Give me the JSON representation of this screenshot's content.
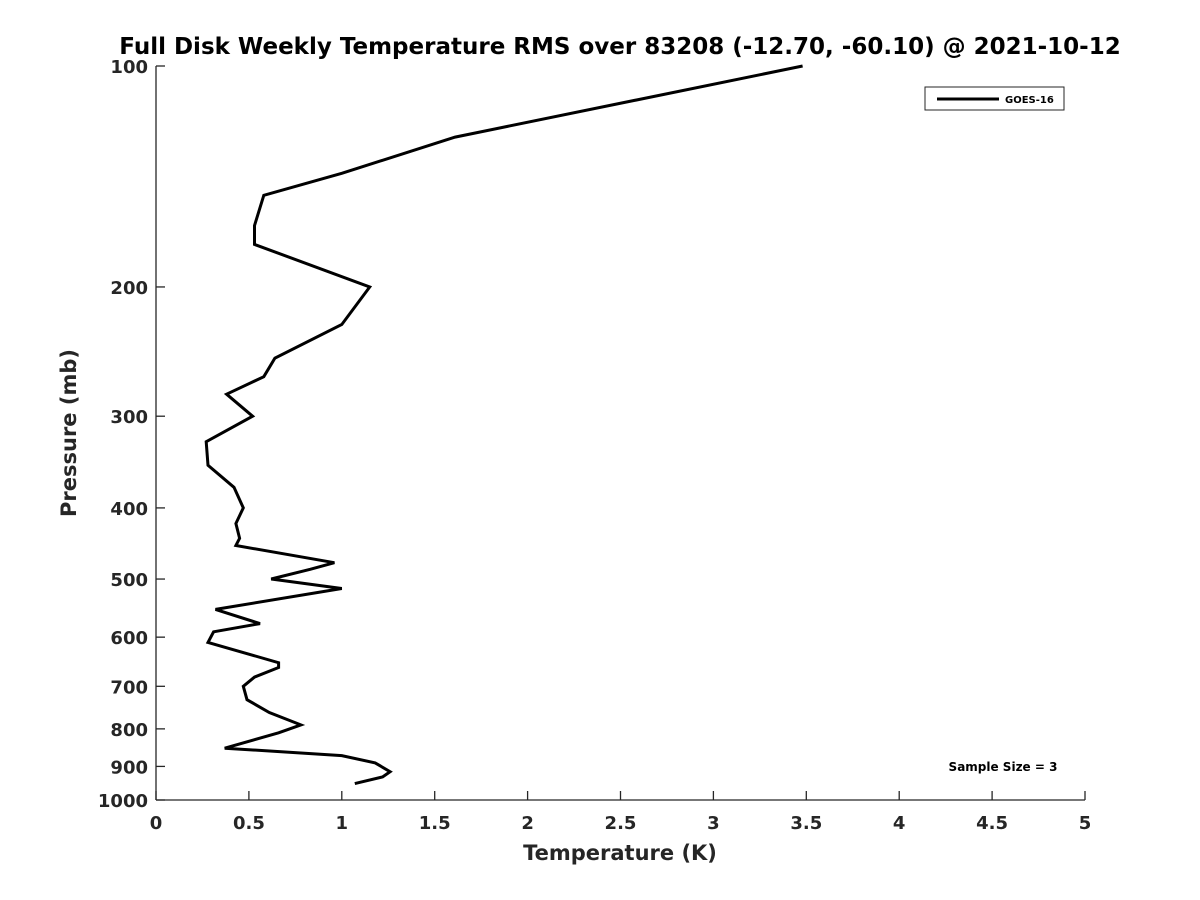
{
  "chart_data": {
    "type": "line",
    "title": "Full Disk Weekly Temperature RMS over 83208 (-12.70, -60.10) @ 2021-10-12",
    "xlabel": "Temperature (K)",
    "ylabel": "Pressure (mb)",
    "xlim": [
      0,
      5
    ],
    "ylim": [
      100,
      1000
    ],
    "y_scale": "log",
    "y_reversed": true,
    "x_ticks": [
      "0",
      "0.5",
      "1",
      "1.5",
      "2",
      "2.5",
      "3",
      "3.5",
      "4",
      "4.5",
      "5"
    ],
    "y_ticks": [
      "100",
      "200",
      "300",
      "400",
      "500",
      "600",
      "700",
      "800",
      "900",
      "1000"
    ],
    "grid": false,
    "legend": {
      "placement": "top-right",
      "entries": [
        "GOES-16"
      ]
    },
    "annotation": "Sample Size = 3",
    "series": [
      {
        "name": "GOES-16",
        "color": "#000000",
        "points": [
          [
            3.48,
            100
          ],
          [
            1.61,
            125
          ],
          [
            1.0,
            140
          ],
          [
            0.58,
            150
          ],
          [
            0.53,
            165
          ],
          [
            0.53,
            175
          ],
          [
            1.15,
            200
          ],
          [
            1.0,
            225
          ],
          [
            0.64,
            250
          ],
          [
            0.58,
            265
          ],
          [
            0.38,
            280
          ],
          [
            0.52,
            300
          ],
          [
            0.27,
            325
          ],
          [
            0.28,
            350
          ],
          [
            0.42,
            375
          ],
          [
            0.47,
            400
          ],
          [
            0.43,
            420
          ],
          [
            0.45,
            440
          ],
          [
            0.43,
            450
          ],
          [
            0.96,
            475
          ],
          [
            0.83,
            485
          ],
          [
            0.62,
            500
          ],
          [
            1.0,
            515
          ],
          [
            0.32,
            550
          ],
          [
            0.56,
            575
          ],
          [
            0.31,
            590
          ],
          [
            0.28,
            610
          ],
          [
            0.66,
            650
          ],
          [
            0.66,
            660
          ],
          [
            0.53,
            680
          ],
          [
            0.47,
            700
          ],
          [
            0.49,
            730
          ],
          [
            0.61,
            760
          ],
          [
            0.78,
            790
          ],
          [
            0.66,
            810
          ],
          [
            0.37,
            850
          ],
          [
            1.0,
            870
          ],
          [
            1.18,
            890
          ],
          [
            1.26,
            915
          ],
          [
            1.22,
            930
          ],
          [
            1.07,
            950
          ]
        ]
      }
    ]
  }
}
